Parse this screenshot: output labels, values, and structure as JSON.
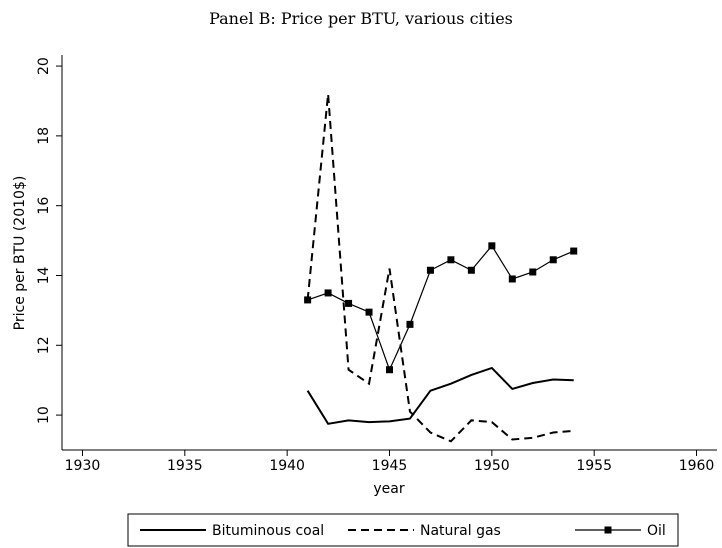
{
  "chart_data": {
    "type": "line",
    "title": "Panel B: Price per BTU, various cities",
    "x_label": "year",
    "y_label": "Price per BTU (2010$)",
    "x": [
      1941,
      1942,
      1943,
      1944,
      1945,
      1946,
      1947,
      1948,
      1949,
      1950,
      1951,
      1952,
      1953,
      1954
    ],
    "series": [
      {
        "name": "Bituminous coal",
        "color": "#000000",
        "dash": false,
        "marker": false,
        "values": [
          10.7,
          9.75,
          9.85,
          9.8,
          9.82,
          9.9,
          10.7,
          10.9,
          11.15,
          11.35,
          10.75,
          10.92,
          11.02,
          11.0
        ]
      },
      {
        "name": "Natural gas",
        "color": "#000000",
        "dash": true,
        "marker": false,
        "values": [
          13.3,
          19.2,
          11.3,
          10.9,
          14.2,
          10.1,
          9.5,
          9.25,
          9.85,
          9.8,
          9.3,
          9.35,
          9.5,
          9.55
        ]
      },
      {
        "name": "Oil",
        "color": "#000000",
        "dash": false,
        "marker": true,
        "values": [
          13.3,
          13.5,
          13.2,
          12.95,
          11.3,
          12.6,
          14.15,
          14.45,
          14.15,
          14.85,
          13.9,
          14.1,
          14.45,
          14.7
        ]
      }
    ],
    "xlim": [
      1929,
      1961
    ],
    "xticks": [
      1930,
      1935,
      1940,
      1945,
      1950,
      1955,
      1960
    ],
    "ylim": [
      9,
      20.3
    ],
    "yticks": [
      10,
      12,
      14,
      16,
      18,
      20
    ],
    "legend": "bottom"
  }
}
